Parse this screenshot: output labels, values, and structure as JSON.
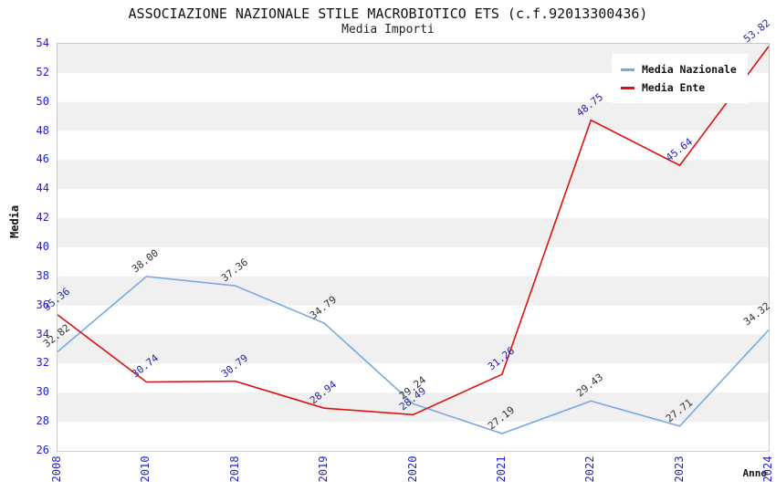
{
  "header": {
    "title": "ASSOCIAZIONE NAZIONALE STILE MACROBIOTICO ETS (c.f.92013300436)",
    "subtitle": "Media Importi"
  },
  "axes": {
    "x_label": "Anno",
    "y_label": "Media",
    "tick_color": "#2222cc"
  },
  "legend": {
    "position": "top-right",
    "items": [
      {
        "label": "Media Nazionale",
        "color": "#78aae1"
      },
      {
        "label": "Media Ente",
        "color": "#dd1111"
      }
    ]
  },
  "chart_data": {
    "type": "line",
    "title": "ASSOCIAZIONE NAZIONALE STILE MACROBIOTICO ETS (c.f.92013300436)",
    "subtitle": "Media Importi",
    "xlabel": "Anno",
    "ylabel": "Media",
    "categories": [
      "2008",
      "2010",
      "2018",
      "2019",
      "2020",
      "2021",
      "2022",
      "2023",
      "2024"
    ],
    "series": [
      {
        "name": "Media Nazionale",
        "color": "#78aae1",
        "label_color": "#303030",
        "values": [
          32.82,
          38.0,
          37.36,
          34.79,
          29.24,
          27.19,
          29.43,
          27.71,
          34.32
        ]
      },
      {
        "name": "Media Ente",
        "color": "#dd1111",
        "label_color": "#2222aa",
        "values": [
          35.36,
          30.74,
          30.79,
          28.94,
          28.49,
          31.26,
          48.75,
          45.64,
          53.82
        ]
      }
    ],
    "ylim": [
      26,
      54
    ],
    "ytick_step": 2,
    "grid": "horizontal-bands",
    "band_colors": [
      "#f0f0f0",
      "#ffffff"
    ],
    "legend_position": "top-right"
  }
}
